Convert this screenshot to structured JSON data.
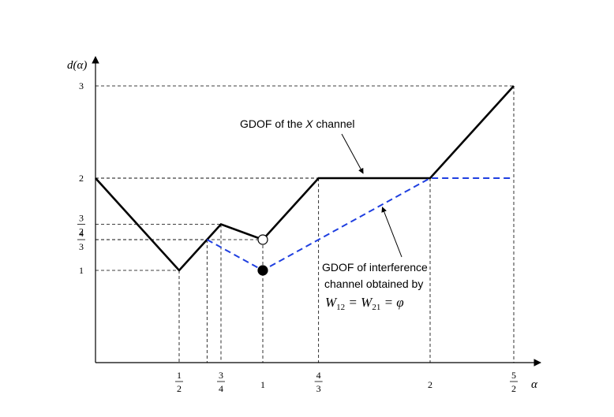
{
  "chart_data": {
    "type": "line",
    "xlabel": "α",
    "ylabel": "d(α)",
    "xlim": [
      0,
      2.5
    ],
    "ylim": [
      0,
      3
    ],
    "x_ticks": [
      {
        "value": 0.5,
        "num": "1",
        "den": "2"
      },
      {
        "value": 0.75,
        "num": "3",
        "den": "4"
      },
      {
        "value": 1,
        "label": "1"
      },
      {
        "value": 1.3333,
        "num": "4",
        "den": "3"
      },
      {
        "value": 2,
        "label": "2"
      },
      {
        "value": 2.5,
        "num": "5",
        "den": "2"
      }
    ],
    "y_ticks": [
      {
        "value": 1,
        "label": "1"
      },
      {
        "value": 1.3333,
        "num": "4",
        "den": "3"
      },
      {
        "value": 1.5,
        "num": "3",
        "den": "2"
      },
      {
        "value": 2,
        "label": "2"
      },
      {
        "value": 3,
        "label": "3"
      }
    ],
    "series": [
      {
        "color": "#000000",
        "style": "solid",
        "x": [
          0,
          0.5,
          0.75,
          1,
          1,
          1.3333,
          2,
          2.5
        ],
        "y": [
          2,
          1,
          1.5,
          1.3333,
          1.3333,
          2,
          2,
          3
        ]
      },
      {
        "color": "#1f3fe0",
        "style": "dashed",
        "x": [
          0.6667,
          1,
          2,
          2.5
        ],
        "y": [
          1.3333,
          1,
          2,
          2
        ]
      }
    ],
    "markers": [
      {
        "x": 1,
        "y": 1.3333,
        "fill": "open"
      },
      {
        "x": 1,
        "y": 1,
        "fill": "filled"
      }
    ],
    "guide_lines": [
      {
        "x": 0.5,
        "y": 1
      },
      {
        "x": 0.75,
        "y": 1.5
      },
      {
        "x": 1,
        "y": 1.3333
      },
      {
        "x": 1.3333,
        "y": 2
      },
      {
        "x": 2,
        "y": 2
      },
      {
        "x": 2.5,
        "y": 3
      },
      {
        "x": 0.6667,
        "y": 1.3333
      }
    ],
    "annotations": [
      {
        "text_pre": "GDOF of the ",
        "text_italic": "X",
        "text_post": " channel",
        "arrow_to": {
          "x": 1.6,
          "y": 2
        }
      },
      {
        "lines": [
          "GDOF of interference",
          "channel obtained by"
        ],
        "formula": "W12 = W21 = φ",
        "arrow_to": {
          "x": 1.7,
          "y": 1.72
        }
      }
    ],
    "grid": false
  }
}
